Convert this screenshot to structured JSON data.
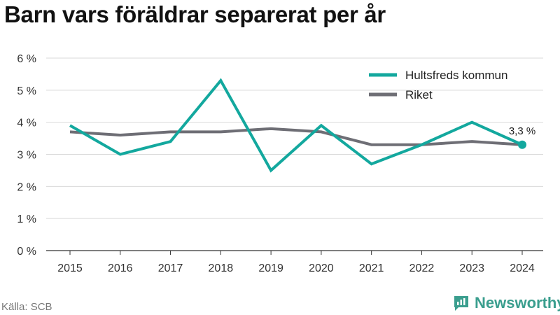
{
  "title": "Barn vars föräldrar separerat per år",
  "source": "Källa: SCB",
  "brand": {
    "name": "Newsworthy",
    "icon": "newsworthy-logo-icon"
  },
  "colors": {
    "series_1": "#13a89e",
    "series_2": "#6e6e75",
    "grid": "#d9d9d9",
    "axis": "#333333"
  },
  "chart_data": {
    "type": "line",
    "title": "",
    "xlabel": "",
    "ylabel": "",
    "x": [
      "2015",
      "2016",
      "2017",
      "2018",
      "2019",
      "2020",
      "2021",
      "2022",
      "2023",
      "2024"
    ],
    "ylim": [
      0,
      6
    ],
    "yticks": [
      0,
      1,
      2,
      3,
      4,
      5,
      6
    ],
    "ytick_labels": [
      "0 %",
      "1 %",
      "2 %",
      "3 %",
      "4 %",
      "5 %",
      "6 %"
    ],
    "grid": true,
    "legend_position": "top-right",
    "series": [
      {
        "name": "Hultsfreds kommun",
        "color": "#13a89e",
        "values": [
          3.9,
          3.0,
          3.4,
          5.3,
          2.5,
          3.9,
          2.7,
          3.3,
          4.0,
          3.3
        ]
      },
      {
        "name": "Riket",
        "color": "#6e6e75",
        "values": [
          3.7,
          3.6,
          3.7,
          3.7,
          3.8,
          3.7,
          3.3,
          3.3,
          3.4,
          3.3
        ]
      }
    ],
    "annotations": [
      {
        "series": 0,
        "x": "2024",
        "text": "3,3 %"
      }
    ]
  }
}
